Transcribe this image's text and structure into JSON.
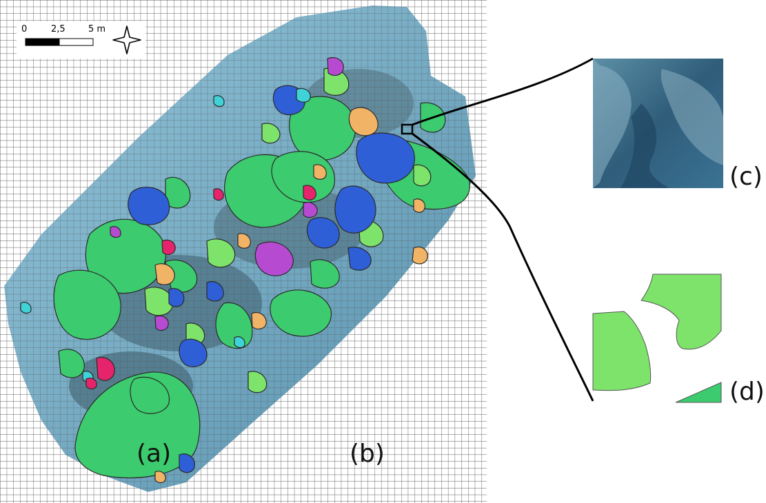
{
  "panel_labels": {
    "a": "(a)",
    "b": "(b)",
    "c": "(c)",
    "d": "(d)"
  },
  "scale_bar": {
    "tick_0": "0",
    "tick_mid": "2,5",
    "tick_end": "5 m"
  },
  "icons": {
    "north": "north-arrow-icon"
  },
  "colors": {
    "grid": "#5a5a5a",
    "orthomosaic": "#7fb7cf",
    "class_green": "#3ccb6e",
    "class_light_green": "#7de36a",
    "class_blue": "#2f5fd6",
    "class_cyan": "#3fd3d8",
    "class_orange": "#f1b366",
    "class_magenta": "#b64bd1",
    "class_pink": "#e6246b",
    "outline": "#2a2a2a"
  }
}
